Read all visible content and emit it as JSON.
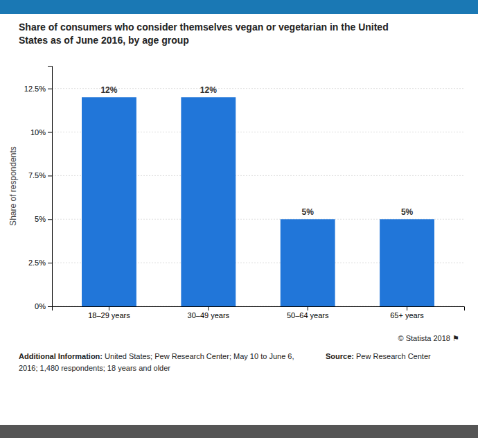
{
  "chart_data": {
    "type": "bar",
    "title": "Share of consumers who consider themselves vegan or vegetarian in the United\nStates as of June 2016, by age group",
    "categories": [
      "18–29 years",
      "30–49 years",
      "50–64 years",
      "65+ years"
    ],
    "values": [
      12,
      12,
      5,
      5
    ],
    "value_labels": [
      "12%",
      "12%",
      "5%",
      "5%"
    ],
    "data_labels": true,
    "color": "#2176d9",
    "ylabel": "Share of respondents",
    "ylim": [
      0,
      13.8
    ],
    "yticks": [
      {
        "value": 0,
        "label": "0%"
      },
      {
        "value": 2.5,
        "label": "2.5%"
      },
      {
        "value": 5.0,
        "label": "5%"
      },
      {
        "value": 7.5,
        "label": "7.5%"
      },
      {
        "value": 10.0,
        "label": "10%"
      },
      {
        "value": 12.5,
        "label": "12.5%"
      }
    ],
    "grid": true,
    "annotations": [
      [
        "© Statista 2018  ⚑"
      ],
      [
        "Source:",
        " Pew Research Center"
      ],
      [
        "Additional Information:",
        " United States; Pew Research Center; May 10 to June 6, 2016; 1,480 respondents; 18 years and older"
      ]
    ]
  }
}
